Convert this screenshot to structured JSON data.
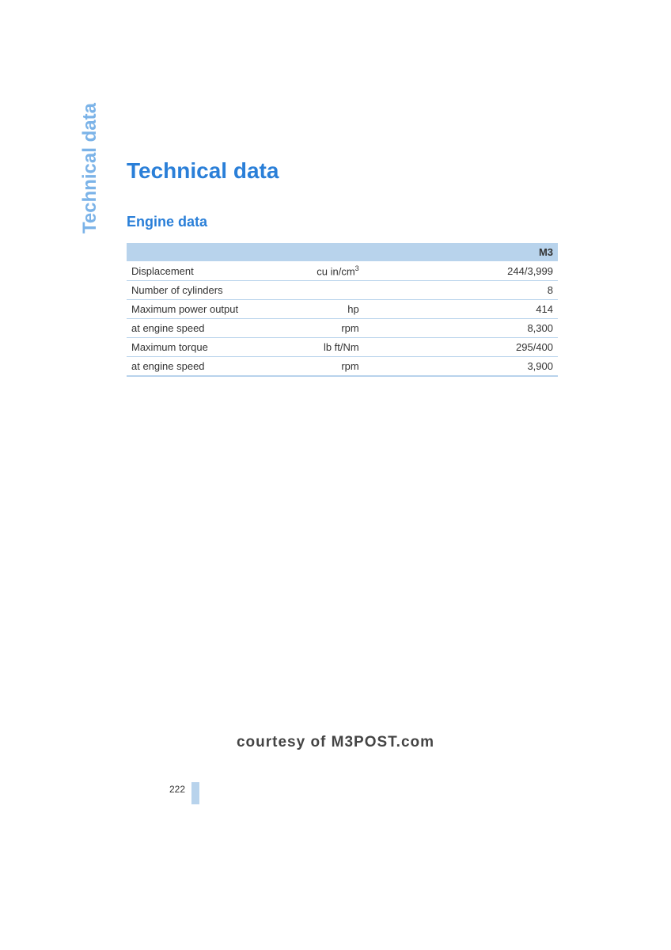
{
  "sidebar": {
    "section_label": "Technical data"
  },
  "main": {
    "title": "Technical data",
    "section_title": "Engine data"
  },
  "table": {
    "header_label": "M3",
    "rows": [
      {
        "label": "Displacement",
        "unit": "cu in/cm³",
        "value": "244/3,999"
      },
      {
        "label": "Number of cylinders",
        "unit": "",
        "value": "8"
      },
      {
        "label": "Maximum power output",
        "unit": "hp",
        "value": "414"
      },
      {
        "label": "at engine speed",
        "unit": "rpm",
        "value": "8,300"
      },
      {
        "label": "Maximum torque",
        "unit": "lb ft/Nm",
        "value": "295/400"
      },
      {
        "label": "at engine speed",
        "unit": "rpm",
        "value": "3,900"
      }
    ]
  },
  "footer": {
    "courtesy": "courtesy of M3POST.com",
    "page_number": "222"
  },
  "styling": {
    "accent_color": "#2a7fd8",
    "light_accent": "#7bb3e8",
    "header_bg": "#b8d3ec",
    "border_color": "#b8d3ec",
    "text_color": "#333333",
    "background_color": "#ffffff",
    "title_fontsize": 28,
    "section_title_fontsize": 18,
    "table_fontsize": 13,
    "courtesy_fontsize": 19
  }
}
